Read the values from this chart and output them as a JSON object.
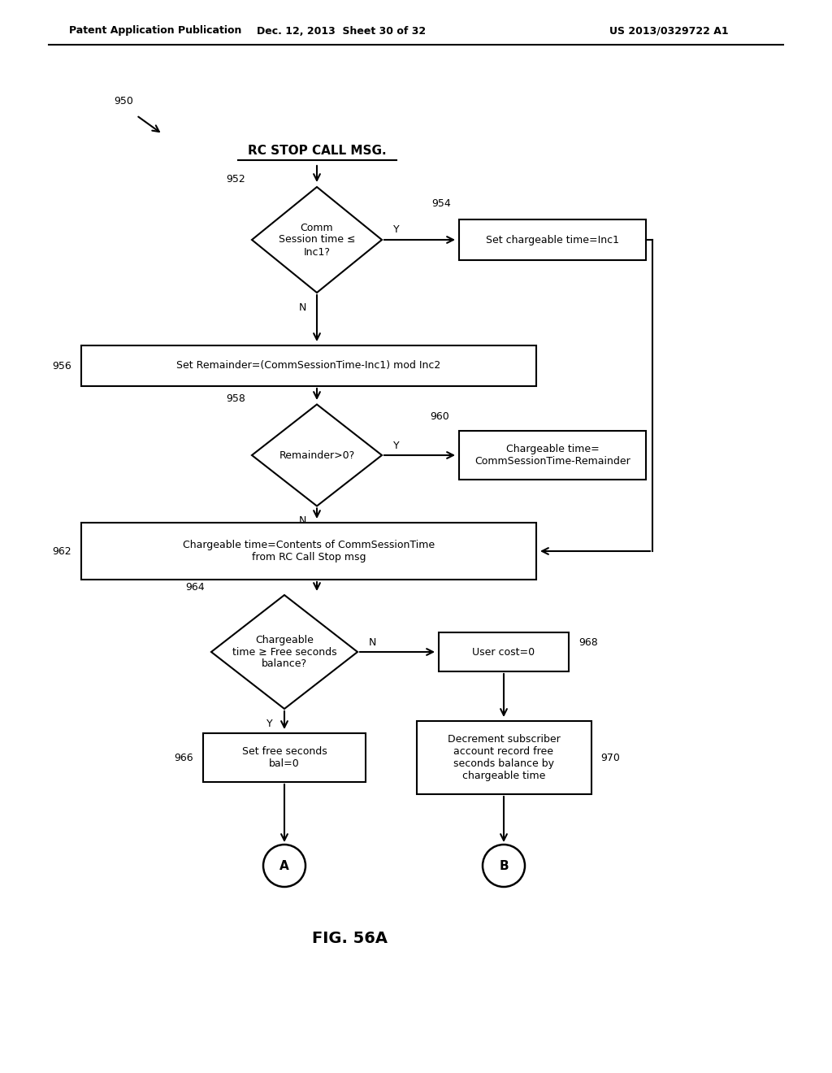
{
  "title": "FIG. 56A",
  "header_left": "Patent Application Publication",
  "header_mid": "Dec. 12, 2013  Sheet 30 of 32",
  "header_right": "US 2013/0329722 A1",
  "bg_color": "#ffffff",
  "start_text": "RC STOP CALL MSG.",
  "d952_text": "Comm\nSession time ≤\nInc1?",
  "b954_text": "Set chargeable time=Inc1",
  "b956_text": "Set Remainder=(CommSessionTime-Inc1) mod Inc2",
  "d958_text": "Remainder>0?",
  "b960_text": "Chargeable time=\nCommSessionTime-Remainder",
  "b962_text": "Chargeable time=Contents of CommSessionTime\nfrom RC Call Stop msg",
  "d964_text": "Chargeable\ntime ≥ Free seconds\nbalance?",
  "b968_text": "User cost=0",
  "b966_text": "Set free seconds\nbal=0",
  "b970_text": "Decrement subscriber\naccount record free\nseconds balance by\nchargeable time",
  "term_A": "A",
  "term_B": "B"
}
